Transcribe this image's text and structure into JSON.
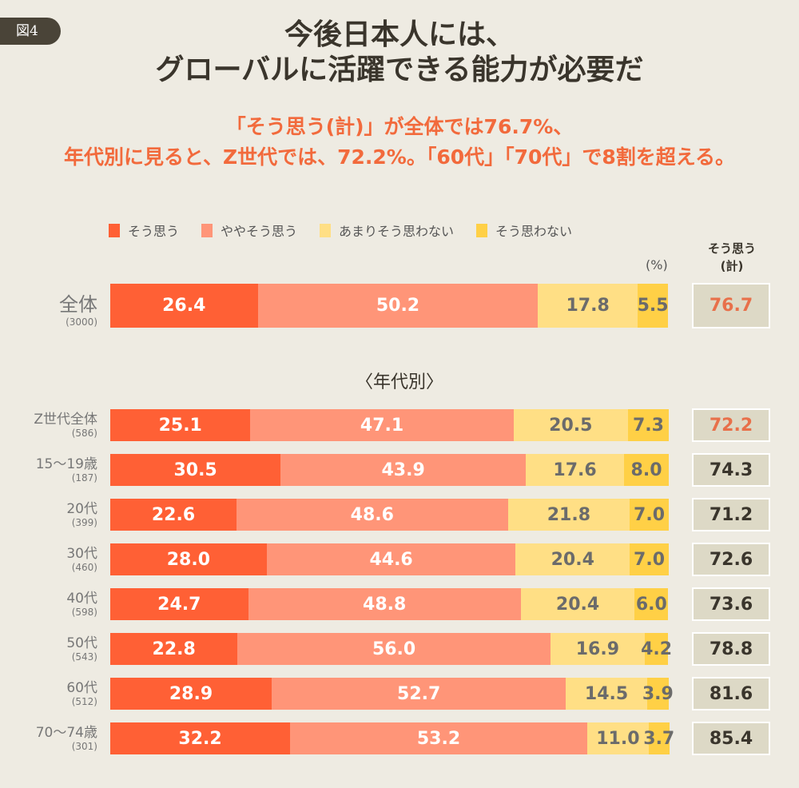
{
  "figure_label": "図4",
  "title": [
    "今後日本人には、",
    "グローバルに活躍できる能力が必要だ"
  ],
  "subtitle": [
    "「そう思う(計)」が全体では76.7%、",
    "年代別に見ると、Z世代では、72.2%。「60代」「70代」で8割を超える。"
  ],
  "section_label": "〈年代別〉",
  "unit_label": "(%)",
  "total_header": [
    "そう思う",
    "(計)"
  ],
  "chart_data": {
    "type": "bar",
    "orientation": "horizontal-stacked-100",
    "legend_position": "top",
    "series": [
      {
        "name": "そう思う",
        "color": "#FF6035"
      },
      {
        "name": "ややそう思う",
        "color": "#FF9578"
      },
      {
        "name": "あまりそう思わない",
        "color": "#FFDF85"
      },
      {
        "name": "そう思わない",
        "color": "#FFD046"
      }
    ],
    "rows": [
      {
        "label": "全体",
        "n": "(3000)",
        "values": [
          26.4,
          50.2,
          17.8,
          5.5
        ],
        "total": "76.7",
        "highlight": true
      },
      {
        "label": "Z世代全体",
        "n": "(586)",
        "values": [
          25.1,
          47.1,
          20.5,
          7.3
        ],
        "total": "72.2",
        "highlight": true
      },
      {
        "label": "15〜19歳",
        "n": "(187)",
        "values": [
          30.5,
          43.9,
          17.6,
          8.0
        ],
        "total": "74.3"
      },
      {
        "label": "20代",
        "n": "(399)",
        "values": [
          22.6,
          48.6,
          21.8,
          7.0
        ],
        "total": "71.2"
      },
      {
        "label": "30代",
        "n": "(460)",
        "values": [
          28.0,
          44.6,
          20.4,
          7.0
        ],
        "total": "72.6"
      },
      {
        "label": "40代",
        "n": "(598)",
        "values": [
          24.7,
          48.8,
          20.4,
          6.0
        ],
        "total": "73.6"
      },
      {
        "label": "50代",
        "n": "(543)",
        "values": [
          22.8,
          56.0,
          16.9,
          4.2
        ],
        "total": "78.8"
      },
      {
        "label": "60代",
        "n": "(512)",
        "values": [
          28.9,
          52.7,
          14.5,
          3.9
        ],
        "total": "81.6"
      },
      {
        "label": "70〜74歳",
        "n": "(301)",
        "values": [
          32.2,
          53.2,
          11.0,
          3.7
        ],
        "total": "85.4"
      }
    ]
  }
}
